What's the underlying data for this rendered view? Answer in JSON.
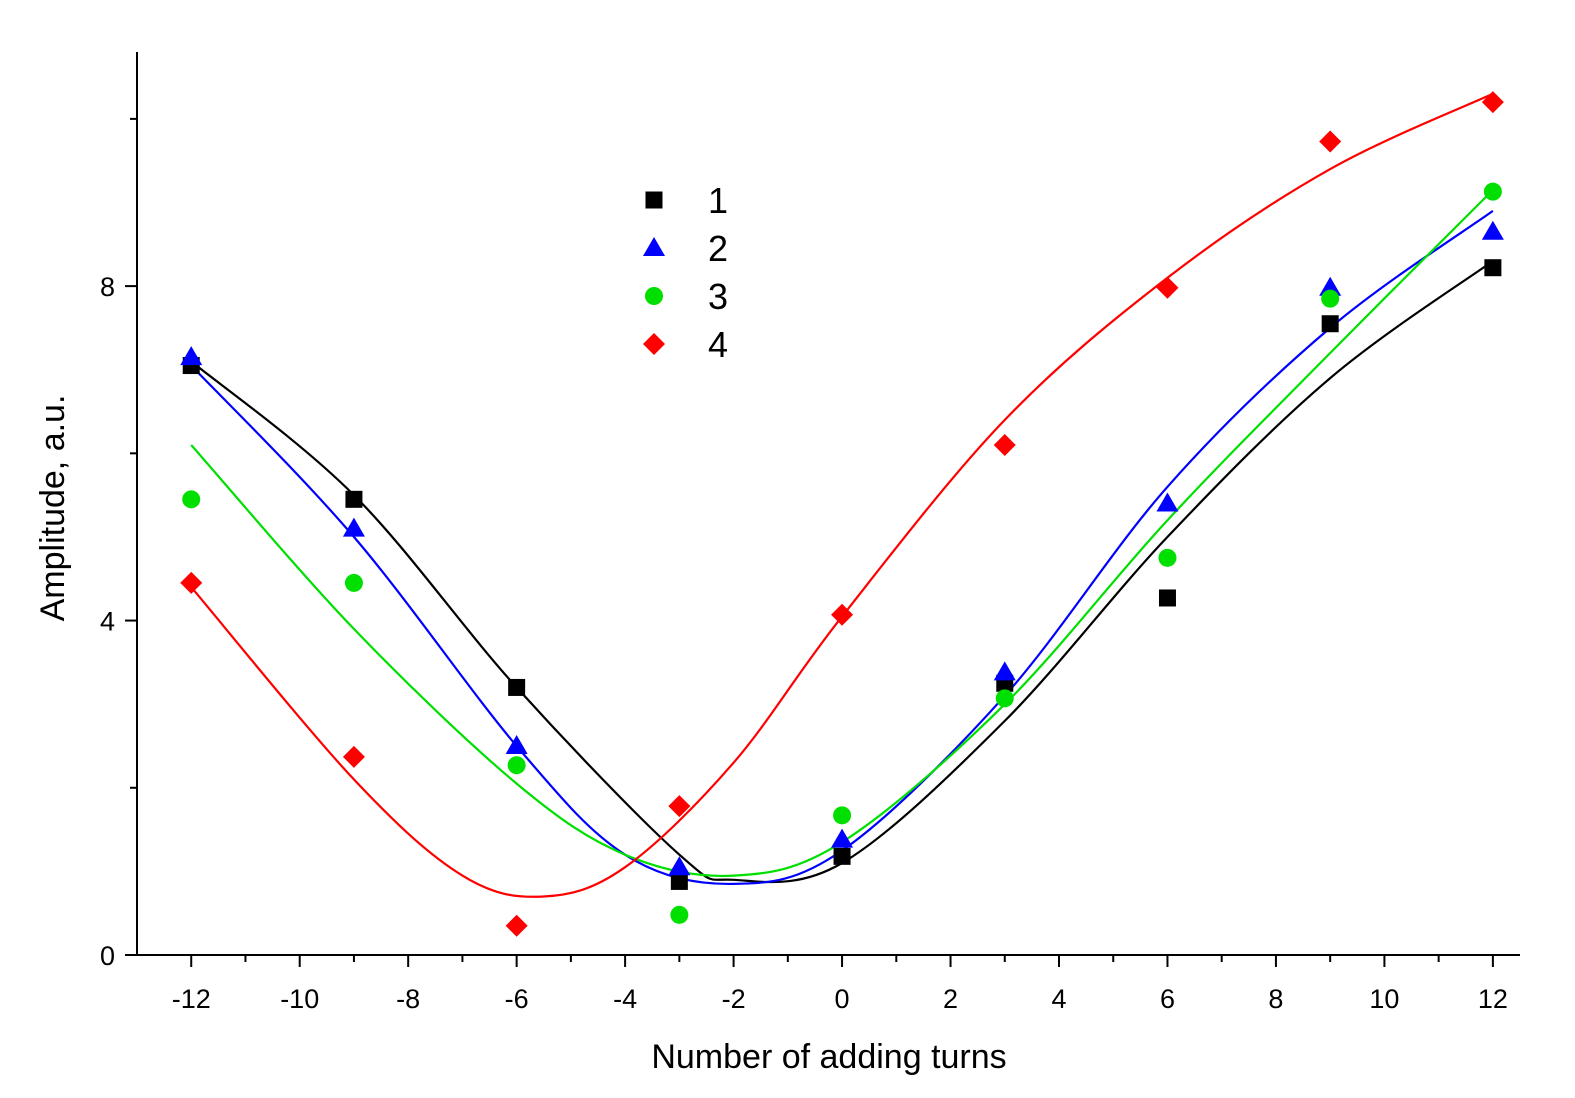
{
  "chart_data": {
    "type": "scatter",
    "title": "",
    "xlabel": "Number of adding turns",
    "ylabel": "Amplitude, a.u.",
    "xlim": [
      -13,
      12.5
    ],
    "ylim": [
      0,
      10.8
    ],
    "x_ticks": [
      -12,
      -10,
      -8,
      -6,
      -4,
      -2,
      0,
      2,
      4,
      6,
      8,
      10,
      12
    ],
    "x_tick_labels": [
      "-12",
      "-10",
      "-8",
      "-6",
      "-4",
      "-2",
      "0",
      "2",
      "4",
      "6",
      "8",
      "10",
      "12"
    ],
    "y_ticks": [
      0,
      4,
      8
    ],
    "y_tick_labels": [
      "0",
      "4",
      "8"
    ],
    "grid": false,
    "legend_position": "top-center",
    "x": [
      -12,
      -9,
      -6,
      -3,
      0,
      3,
      6,
      9,
      12
    ],
    "series": [
      {
        "name": "1",
        "marker": "square",
        "color": "#000000",
        "values": [
          7.05,
          5.45,
          3.2,
          0.88,
          1.18,
          3.25,
          4.27,
          7.55,
          8.22
        ],
        "fit_x": [
          -12,
          -9,
          -6,
          -3,
          -2,
          0,
          3,
          6,
          9,
          12
        ],
        "fit_y": [
          7.1,
          5.5,
          3.2,
          1.2,
          0.9,
          1.1,
          2.8,
          5.0,
          6.9,
          8.3
        ]
      },
      {
        "name": "2",
        "marker": "triangle",
        "color": "#0000ff",
        "values": [
          7.15,
          5.1,
          2.5,
          1.05,
          1.38,
          3.38,
          5.4,
          7.98,
          8.65
        ],
        "fit_x": [
          -12,
          -9,
          -6,
          -4,
          -2,
          0,
          3,
          6,
          9,
          12
        ],
        "fit_y": [
          7.05,
          5.0,
          2.5,
          1.2,
          0.85,
          1.25,
          3.1,
          5.6,
          7.5,
          8.9
        ]
      },
      {
        "name": "3",
        "marker": "circle",
        "color": "#00e000",
        "values": [
          5.45,
          4.45,
          2.27,
          0.48,
          1.67,
          3.07,
          4.75,
          7.85,
          9.13
        ],
        "fit_x": [
          -12,
          -9,
          -6,
          -4,
          -2,
          0,
          3,
          6,
          9,
          12
        ],
        "fit_y": [
          6.1,
          3.9,
          2.05,
          1.2,
          0.95,
          1.35,
          3.0,
          5.2,
          7.2,
          9.15
        ]
      },
      {
        "name": "4",
        "marker": "diamond",
        "color": "#ff0000",
        "values": [
          4.45,
          2.37,
          0.35,
          1.78,
          4.07,
          6.1,
          7.98,
          9.73,
          10.2
        ],
        "fit_x": [
          -12,
          -9,
          -7,
          -5.5,
          -4,
          -2,
          0,
          3,
          6,
          9,
          12
        ],
        "fit_y": [
          4.4,
          2.1,
          0.95,
          0.7,
          1.05,
          2.3,
          4.05,
          6.4,
          8.1,
          9.4,
          10.3
        ]
      }
    ]
  }
}
